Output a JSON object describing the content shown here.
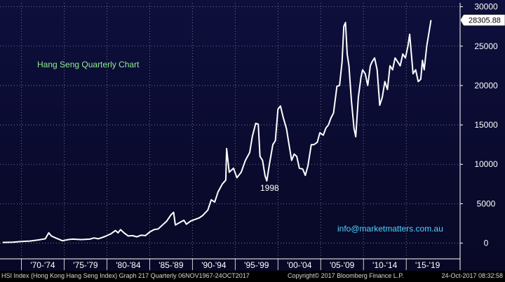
{
  "chart_data": {
    "type": "line",
    "title": "Hang Seng Quarterly Chart",
    "annotation_year": "1998",
    "website": "info@marketmatters.com.au",
    "last_value_label": "28305.88",
    "ylim": [
      -2000,
      30500
    ],
    "y_ticks": [
      0,
      5000,
      10000,
      15000,
      20000,
      25000,
      30000
    ],
    "xlim": [
      1967.5,
      2021.3
    ],
    "x_ticks": [
      {
        "label": "'70-'74",
        "start": 1970,
        "end": 1975
      },
      {
        "label": "'75-'79",
        "start": 1975,
        "end": 1980
      },
      {
        "label": "'80-'84",
        "start": 1980,
        "end": 1985
      },
      {
        "label": "'85-'89",
        "start": 1985,
        "end": 1990
      },
      {
        "label": "'90-'94",
        "start": 1990,
        "end": 1995
      },
      {
        "label": "'95-'99",
        "start": 1995,
        "end": 2000
      },
      {
        "label": "'00-'04",
        "start": 2000,
        "end": 2005
      },
      {
        "label": "'05-'09",
        "start": 2005,
        "end": 2010
      },
      {
        "label": "'10-'14",
        "start": 2010,
        "end": 2015
      },
      {
        "label": "'15-'19",
        "start": 2015,
        "end": 2020
      }
    ],
    "series": [
      {
        "color": "#ffffff",
        "points": [
          [
            1967.8,
            80
          ],
          [
            1969.0,
            120
          ],
          [
            1970.0,
            200
          ],
          [
            1971.0,
            260
          ],
          [
            1972.0,
            400
          ],
          [
            1972.8,
            550
          ],
          [
            1973.2,
            1300
          ],
          [
            1973.5,
            900
          ],
          [
            1974.0,
            650
          ],
          [
            1974.8,
            300
          ],
          [
            1975.5,
            450
          ],
          [
            1976.0,
            500
          ],
          [
            1977.0,
            450
          ],
          [
            1978.0,
            500
          ],
          [
            1978.5,
            650
          ],
          [
            1979.0,
            550
          ],
          [
            1979.8,
            850
          ],
          [
            1980.5,
            1200
          ],
          [
            1981.0,
            1600
          ],
          [
            1981.3,
            1300
          ],
          [
            1981.6,
            1700
          ],
          [
            1982.0,
            1300
          ],
          [
            1982.5,
            900
          ],
          [
            1983.0,
            950
          ],
          [
            1983.5,
            800
          ],
          [
            1984.0,
            1000
          ],
          [
            1984.5,
            950
          ],
          [
            1985.0,
            1400
          ],
          [
            1985.5,
            1700
          ],
          [
            1986.0,
            1800
          ],
          [
            1986.5,
            2300
          ],
          [
            1987.0,
            2800
          ],
          [
            1987.5,
            3600
          ],
          [
            1987.8,
            3900
          ],
          [
            1988.0,
            2300
          ],
          [
            1988.5,
            2600
          ],
          [
            1989.0,
            2900
          ],
          [
            1989.3,
            2400
          ],
          [
            1989.8,
            2800
          ],
          [
            1990.3,
            3000
          ],
          [
            1990.8,
            3200
          ],
          [
            1991.2,
            3500
          ],
          [
            1991.8,
            4200
          ],
          [
            1992.2,
            5500
          ],
          [
            1992.6,
            5200
          ],
          [
            1993.0,
            6500
          ],
          [
            1993.5,
            7500
          ],
          [
            1993.9,
            8000
          ],
          [
            1994.0,
            12000
          ],
          [
            1994.3,
            9000
          ],
          [
            1994.8,
            9500
          ],
          [
            1995.2,
            8300
          ],
          [
            1995.7,
            9000
          ],
          [
            1996.2,
            10500
          ],
          [
            1996.7,
            11500
          ],
          [
            1997.0,
            13500
          ],
          [
            1997.4,
            15200
          ],
          [
            1997.7,
            15100
          ],
          [
            1997.9,
            11000
          ],
          [
            1998.2,
            10500
          ],
          [
            1998.5,
            8500
          ],
          [
            1998.7,
            7900
          ],
          [
            1999.0,
            10000
          ],
          [
            1999.4,
            12500
          ],
          [
            1999.7,
            13000
          ],
          [
            2000.0,
            17000
          ],
          [
            2000.3,
            17400
          ],
          [
            2000.6,
            16000
          ],
          [
            2001.0,
            14500
          ],
          [
            2001.3,
            12500
          ],
          [
            2001.6,
            10500
          ],
          [
            2001.9,
            11300
          ],
          [
            2002.2,
            11000
          ],
          [
            2002.5,
            9500
          ],
          [
            2002.9,
            9400
          ],
          [
            2003.2,
            8600
          ],
          [
            2003.5,
            9800
          ],
          [
            2003.9,
            12500
          ],
          [
            2004.2,
            12500
          ],
          [
            2004.6,
            12800
          ],
          [
            2004.9,
            14000
          ],
          [
            2005.3,
            13700
          ],
          [
            2005.6,
            14600
          ],
          [
            2005.9,
            15000
          ],
          [
            2006.2,
            15900
          ],
          [
            2006.5,
            16500
          ],
          [
            2006.9,
            19900
          ],
          [
            2007.2,
            20000
          ],
          [
            2007.5,
            23000
          ],
          [
            2007.7,
            27500
          ],
          [
            2007.9,
            28000
          ],
          [
            2008.1,
            24000
          ],
          [
            2008.3,
            22500
          ],
          [
            2008.6,
            18000
          ],
          [
            2008.9,
            14500
          ],
          [
            2009.1,
            13500
          ],
          [
            2009.4,
            18500
          ],
          [
            2009.7,
            21000
          ],
          [
            2009.9,
            22000
          ],
          [
            2010.2,
            21500
          ],
          [
            2010.5,
            20000
          ],
          [
            2010.8,
            22500
          ],
          [
            2011.0,
            23000
          ],
          [
            2011.3,
            23500
          ],
          [
            2011.6,
            22000
          ],
          [
            2011.9,
            17500
          ],
          [
            2012.2,
            18500
          ],
          [
            2012.5,
            20500
          ],
          [
            2012.8,
            19500
          ],
          [
            2013.1,
            22500
          ],
          [
            2013.4,
            22000
          ],
          [
            2013.7,
            23500
          ],
          [
            2014.0,
            23000
          ],
          [
            2014.3,
            22500
          ],
          [
            2014.6,
            24000
          ],
          [
            2014.9,
            23500
          ],
          [
            2015.2,
            25000
          ],
          [
            2015.4,
            26500
          ],
          [
            2015.6,
            24000
          ],
          [
            2015.8,
            21500
          ],
          [
            2016.1,
            22000
          ],
          [
            2016.4,
            20500
          ],
          [
            2016.7,
            20800
          ],
          [
            2016.9,
            23200
          ],
          [
            2017.1,
            22000
          ],
          [
            2017.4,
            25000
          ],
          [
            2017.7,
            27000
          ],
          [
            2017.9,
            28306
          ]
        ]
      }
    ],
    "colors": {
      "background_top": "#0e0f3c",
      "background_bottom": "#080826",
      "grid": "#8a8ca0",
      "title": "#90ee90",
      "website": "#4fd5ff",
      "axis_text": "#ffffff"
    }
  },
  "footer": {
    "left": "HSI Index (Hong Kong Hang Seng Index) Graph 217  Quarterly 06NOV1967-24OCT2017",
    "center": "Copyright© 2017 Bloomberg Finance L.P.",
    "right": "24-Oct-2017 08:32:58"
  }
}
